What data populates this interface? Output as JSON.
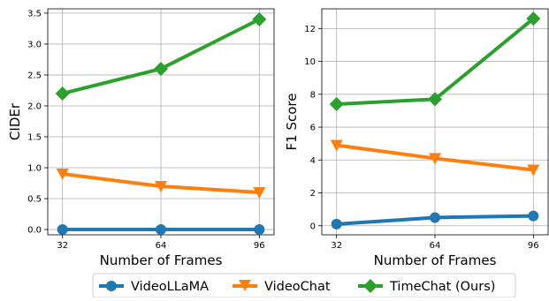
{
  "chart_data": [
    {
      "type": "line",
      "xlabel": "Number of Frames",
      "ylabel": "CIDEr",
      "x": [
        32,
        64,
        96
      ],
      "x_ticks": [
        "32",
        "64",
        "96"
      ],
      "ylim": [
        -0.085,
        3.57
      ],
      "y_ticks": [
        "0.0",
        "0.5",
        "1.0",
        "1.5",
        "2.0",
        "2.5",
        "3.0",
        "3.5"
      ],
      "y_tick_values": [
        0,
        0.5,
        1.0,
        1.5,
        2.0,
        2.5,
        3.0,
        3.5
      ],
      "grid": true,
      "series": [
        {
          "name": "VideoLLaMA",
          "values": [
            0.0,
            0.0,
            0.0
          ]
        },
        {
          "name": "VideoChat",
          "values": [
            0.9,
            0.7,
            0.6
          ]
        },
        {
          "name": "TimeChat (Ours)",
          "values": [
            2.2,
            2.6,
            3.4
          ]
        }
      ]
    },
    {
      "type": "line",
      "xlabel": "Number of Frames",
      "ylabel": "F1 Score",
      "x": [
        32,
        64,
        96
      ],
      "x_ticks": [
        "32",
        "64",
        "96"
      ],
      "ylim": [
        -0.55,
        13.2
      ],
      "y_ticks": [
        "0",
        "2",
        "4",
        "6",
        "8",
        "10",
        "12"
      ],
      "y_tick_values": [
        0,
        2,
        4,
        6,
        8,
        10,
        12
      ],
      "grid": true,
      "series": [
        {
          "name": "VideoLLaMA",
          "values": [
            0.1,
            0.5,
            0.6
          ]
        },
        {
          "name": "VideoChat",
          "values": [
            4.9,
            4.1,
            3.4
          ]
        },
        {
          "name": "TimeChat (Ours)",
          "values": [
            7.4,
            7.7,
            12.6
          ]
        }
      ]
    }
  ],
  "legend": {
    "placement": "bottom-center",
    "entries": [
      {
        "label": "VideoLLaMA",
        "color": "#1f77b4",
        "marker": "circle"
      },
      {
        "label": "VideoChat",
        "color": "#ff7f0e",
        "marker": "triangle-down"
      },
      {
        "label": "TimeChat (Ours)",
        "color": "#2ca02c",
        "marker": "diamond"
      }
    ]
  },
  "colors": {
    "VideoLLaMA": "#1f77b4",
    "VideoChat": "#ff7f0e",
    "TimeChat (Ours)": "#2ca02c",
    "grid": "#b0b0b0"
  }
}
